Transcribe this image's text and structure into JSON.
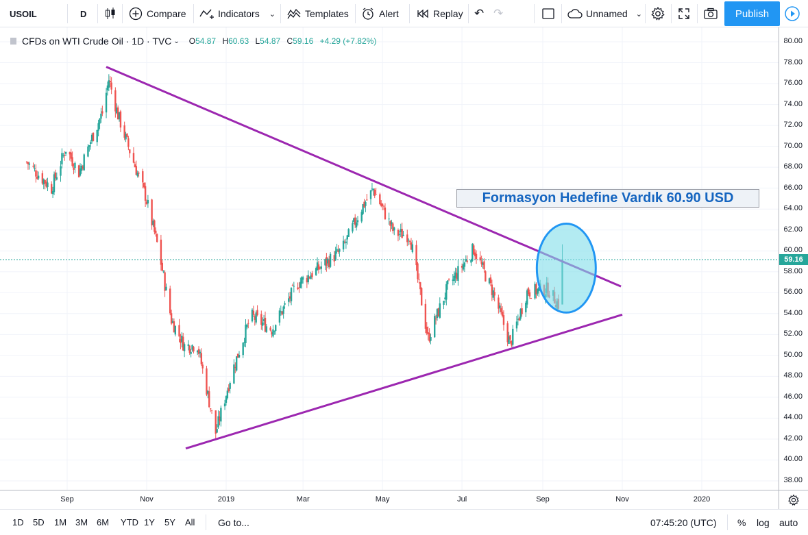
{
  "toolbar": {
    "symbol": "USOIL",
    "interval": "D",
    "compare": "Compare",
    "indicators": "Indicators",
    "templates": "Templates",
    "alert": "Alert",
    "replay": "Replay",
    "layout_name": "Unnamed",
    "publish": "Publish"
  },
  "legend": {
    "title": "CFDs on WTI Crude Oil · 1D · TVC",
    "open_label": "O",
    "open": "54.87",
    "high_label": "H",
    "high": "60.63",
    "low_label": "L",
    "low": "54.87",
    "close_label": "C",
    "close": "59.16",
    "change": "+4.29 (+7.82%)"
  },
  "annotation": "Formasyon Hedefine Vardık 60.90 USD",
  "price_scale": {
    "labels": [
      "80.00",
      "78.00",
      "76.00",
      "74.00",
      "72.00",
      "70.00",
      "68.00",
      "66.00",
      "64.00",
      "62.00",
      "60.00",
      "58.00",
      "56.00",
      "54.00",
      "52.00",
      "50.00",
      "48.00",
      "46.00",
      "44.00",
      "42.00",
      "40.00",
      "38.00"
    ],
    "last_price": "59.16"
  },
  "time_scale": {
    "labels": [
      "Sep",
      "Nov",
      "2019",
      "Mar",
      "May",
      "Jul",
      "Sep",
      "Nov",
      "2020"
    ]
  },
  "bottom_bar": {
    "ranges": [
      "1D",
      "5D",
      "1M",
      "3M",
      "6M",
      "YTD",
      "1Y",
      "5Y",
      "All"
    ],
    "goto": "Go to...",
    "clock": "07:45:20 (UTC)",
    "percent": "%",
    "log": "log",
    "auto": "auto"
  },
  "colors": {
    "up": "#26a69a",
    "down": "#ef5350",
    "trendline": "#9c27b0",
    "highlight_fill": "#80deea",
    "highlight_stroke": "#2196f3",
    "accent": "#2196f3"
  },
  "chart_data": {
    "type": "candlestick",
    "symbol": "USOIL",
    "ylim": [
      37,
      81
    ],
    "series_close": [
      {
        "x": "2018-08-01",
        "close": 68.5
      },
      {
        "x": "2018-08-10",
        "close": 67.3
      },
      {
        "x": "2018-08-20",
        "close": 66.0
      },
      {
        "x": "2018-08-31",
        "close": 69.8
      },
      {
        "x": "2018-09-10",
        "close": 67.5
      },
      {
        "x": "2018-09-20",
        "close": 70.8
      },
      {
        "x": "2018-09-28",
        "close": 73.2
      },
      {
        "x": "2018-10-03",
        "close": 76.4
      },
      {
        "x": "2018-10-10",
        "close": 73.0
      },
      {
        "x": "2018-10-20",
        "close": 69.2
      },
      {
        "x": "2018-10-31",
        "close": 65.3
      },
      {
        "x": "2018-11-10",
        "close": 60.2
      },
      {
        "x": "2018-11-20",
        "close": 53.4
      },
      {
        "x": "2018-11-30",
        "close": 50.9
      },
      {
        "x": "2018-12-10",
        "close": 51.0
      },
      {
        "x": "2018-12-18",
        "close": 46.2
      },
      {
        "x": "2018-12-24",
        "close": 42.6
      },
      {
        "x": "2019-01-05",
        "close": 48.2
      },
      {
        "x": "2019-01-20",
        "close": 53.8
      },
      {
        "x": "2019-02-05",
        "close": 52.5
      },
      {
        "x": "2019-02-25",
        "close": 56.9
      },
      {
        "x": "2019-03-15",
        "close": 58.5
      },
      {
        "x": "2019-03-31",
        "close": 60.1
      },
      {
        "x": "2019-04-15",
        "close": 64.1
      },
      {
        "x": "2019-04-24",
        "close": 65.9
      },
      {
        "x": "2019-05-10",
        "close": 61.7
      },
      {
        "x": "2019-05-22",
        "close": 61.5
      },
      {
        "x": "2019-06-05",
        "close": 51.6
      },
      {
        "x": "2019-06-20",
        "close": 56.5
      },
      {
        "x": "2019-07-10",
        "close": 60.2
      },
      {
        "x": "2019-07-25",
        "close": 56.0
      },
      {
        "x": "2019-08-07",
        "close": 51.1
      },
      {
        "x": "2019-08-20",
        "close": 56.1
      },
      {
        "x": "2019-09-05",
        "close": 56.3
      },
      {
        "x": "2019-09-13",
        "close": 54.9
      },
      {
        "x": "2019-09-16",
        "close": 59.2
      }
    ],
    "trendlines": [
      {
        "name": "upper",
        "from": {
          "x": "2018-10-01",
          "y": 77.6
        },
        "to": {
          "x": "2019-10-31",
          "y": 56.6
        }
      },
      {
        "name": "lower",
        "from": {
          "x": "2018-12-01",
          "y": 41.1
        },
        "to": {
          "x": "2019-11-01",
          "y": 53.9
        }
      }
    ],
    "highlight": {
      "shape": "ellipse",
      "center": {
        "x": "2019-09-18",
        "y": 58.4
      },
      "y_range": [
        54.1,
        62.6
      ]
    },
    "last_price": 59.16
  }
}
